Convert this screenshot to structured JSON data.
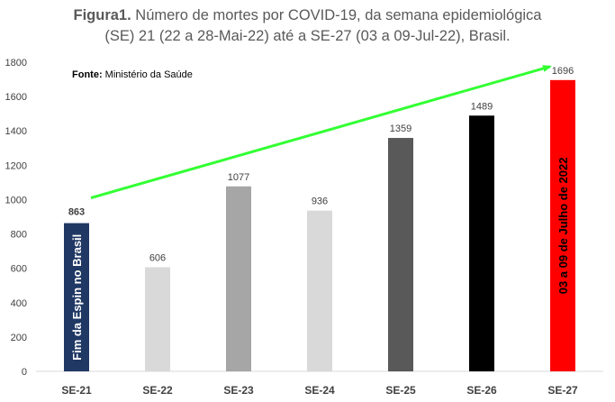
{
  "title": {
    "bold": "Figura1.",
    "line1": " Número de mortes por COVID-19, da semana epidemiológica",
    "line2": "(SE) 21 (22 a 28-Mai-22) até a SE-27 (03 a 09-Jul-22), Brasil."
  },
  "source": {
    "label": "Fonte:",
    "text": " Ministério da Saúde"
  },
  "annotations": {
    "first_bar": "Fim da Espin no Brasil",
    "last_bar": "03 a 09 de Julho de 2022"
  },
  "chart_data": {
    "type": "bar",
    "categories": [
      "SE-21",
      "SE-22",
      "SE-23",
      "SE-24",
      "SE-25",
      "SE-26",
      "SE-27"
    ],
    "values": [
      863,
      606,
      1077,
      936,
      1359,
      1489,
      1696
    ],
    "data_labels": [
      "863",
      "606",
      "1077",
      "936",
      "1359",
      "1489",
      "1696"
    ],
    "colors": [
      "#203864",
      "#d9d9d9",
      "#a6a6a6",
      "#d9d9d9",
      "#595959",
      "#000000",
      "#ff0000"
    ],
    "ylim": [
      0,
      1800
    ],
    "yticks": [
      0,
      200,
      400,
      600,
      800,
      1000,
      1200,
      1400,
      1600,
      1800
    ],
    "grid": false,
    "trend_arrow": {
      "from": "SE-21",
      "to": "SE-27",
      "color": "#33ff33"
    }
  }
}
